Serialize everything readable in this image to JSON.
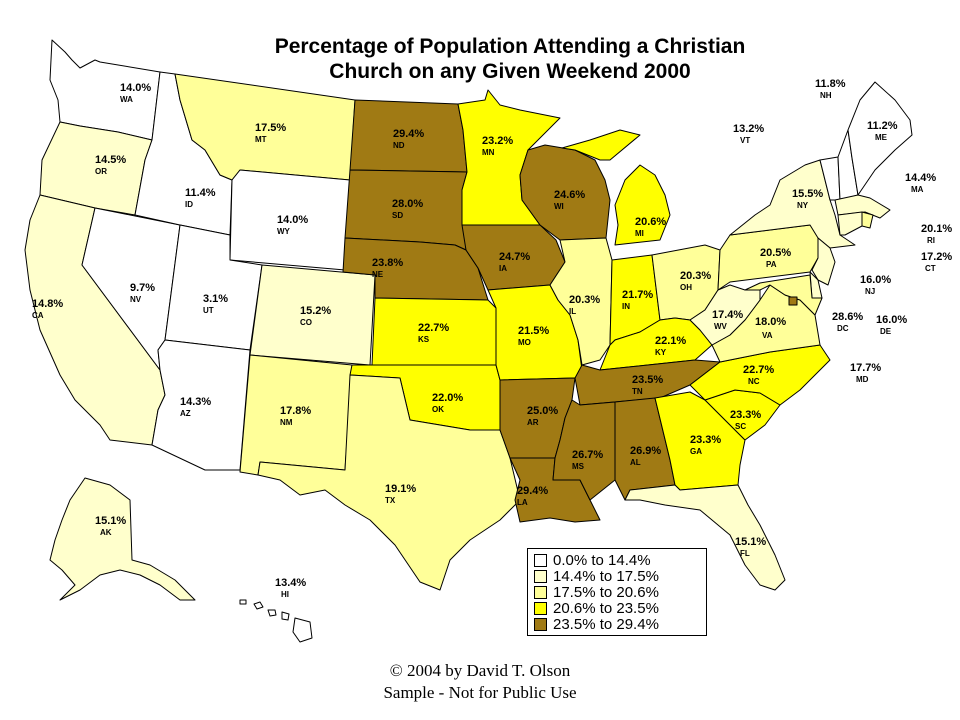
{
  "title_line1": "Percentage of Population Attending a Christian",
  "title_line2": "Church on any Given Weekend 2000",
  "footer_line1": "© 2004 by David T. Olson",
  "footer_line2": "Sample - Not for Public Use",
  "colors": {
    "bin0": "#ffffff",
    "bin1": "#ffffcc",
    "bin2": "#ffff99",
    "bin3": "#ffff00",
    "bin4": "#a07a14"
  },
  "legend": [
    {
      "label": "0.0% to 14.4%",
      "color": "#ffffff"
    },
    {
      "label": "14.4% to 17.5%",
      "color": "#ffffcc"
    },
    {
      "label": "17.5% to 20.6%",
      "color": "#ffff99"
    },
    {
      "label": "20.6% to 23.5%",
      "color": "#ffff00"
    },
    {
      "label": "23.5% to 29.4%",
      "color": "#a07a14"
    }
  ],
  "states": {
    "WA": {
      "pct": "14.0%",
      "abbr": "WA",
      "bin": 0
    },
    "OR": {
      "pct": "14.5%",
      "abbr": "OR",
      "bin": 1
    },
    "CA": {
      "pct": "14.8%",
      "abbr": "CA",
      "bin": 1
    },
    "NV": {
      "pct": "9.7%",
      "abbr": "NV",
      "bin": 0
    },
    "ID": {
      "pct": "11.4%",
      "abbr": "ID",
      "bin": 0
    },
    "MT": {
      "pct": "17.5%",
      "abbr": "MT",
      "bin": 2
    },
    "WY": {
      "pct": "14.0%",
      "abbr": "WY",
      "bin": 0
    },
    "UT": {
      "pct": "3.1%",
      "abbr": "UT",
      "bin": 0
    },
    "AZ": {
      "pct": "14.3%",
      "abbr": "AZ",
      "bin": 0
    },
    "CO": {
      "pct": "15.2%",
      "abbr": "CO",
      "bin": 1
    },
    "NM": {
      "pct": "17.8%",
      "abbr": "NM",
      "bin": 2
    },
    "ND": {
      "pct": "29.4%",
      "abbr": "ND",
      "bin": 4
    },
    "SD": {
      "pct": "28.0%",
      "abbr": "SD",
      "bin": 4
    },
    "NE": {
      "pct": "23.8%",
      "abbr": "NE",
      "bin": 4
    },
    "KS": {
      "pct": "22.7%",
      "abbr": "KS",
      "bin": 3
    },
    "OK": {
      "pct": "22.0%",
      "abbr": "OK",
      "bin": 3
    },
    "TX": {
      "pct": "19.1%",
      "abbr": "TX",
      "bin": 2
    },
    "MN": {
      "pct": "23.2%",
      "abbr": "MN",
      "bin": 3
    },
    "IA": {
      "pct": "24.7%",
      "abbr": "IA",
      "bin": 4
    },
    "MO": {
      "pct": "21.5%",
      "abbr": "MO",
      "bin": 3
    },
    "AR": {
      "pct": "25.0%",
      "abbr": "AR",
      "bin": 4
    },
    "LA": {
      "pct": "29.4%",
      "abbr": "LA",
      "bin": 4
    },
    "WI": {
      "pct": "24.6%",
      "abbr": "WI",
      "bin": 4
    },
    "IL": {
      "pct": "20.3%",
      "abbr": "IL",
      "bin": 2
    },
    "MI": {
      "pct": "20.6%",
      "abbr": "MI",
      "bin": 3
    },
    "IN": {
      "pct": "21.7%",
      "abbr": "IN",
      "bin": 3
    },
    "OH": {
      "pct": "20.3%",
      "abbr": "OH",
      "bin": 2
    },
    "KY": {
      "pct": "22.1%",
      "abbr": "KY",
      "bin": 3
    },
    "TN": {
      "pct": "23.5%",
      "abbr": "TN",
      "bin": 4
    },
    "MS": {
      "pct": "26.7%",
      "abbr": "MS",
      "bin": 4
    },
    "AL": {
      "pct": "26.9%",
      "abbr": "AL",
      "bin": 4
    },
    "GA": {
      "pct": "23.3%",
      "abbr": "GA",
      "bin": 3
    },
    "FL": {
      "pct": "15.1%",
      "abbr": "FL",
      "bin": 1
    },
    "SC": {
      "pct": "23.3%",
      "abbr": "SC",
      "bin": 3
    },
    "NC": {
      "pct": "22.7%",
      "abbr": "NC",
      "bin": 3
    },
    "VA": {
      "pct": "18.0%",
      "abbr": "VA",
      "bin": 2
    },
    "WV": {
      "pct": "17.4%",
      "abbr": "WV",
      "bin": 1
    },
    "PA": {
      "pct": "20.5%",
      "abbr": "PA",
      "bin": 2
    },
    "NY": {
      "pct": "15.5%",
      "abbr": "NY",
      "bin": 1
    },
    "VT": {
      "pct": "13.2%",
      "abbr": "VT",
      "bin": 0
    },
    "NH": {
      "pct": "11.8%",
      "abbr": "NH",
      "bin": 0
    },
    "ME": {
      "pct": "11.2%",
      "abbr": "ME",
      "bin": 0
    },
    "MA": {
      "pct": "14.4%",
      "abbr": "MA",
      "bin": 1
    },
    "RI": {
      "pct": "20.1%",
      "abbr": "RI",
      "bin": 2
    },
    "CT": {
      "pct": "17.2%",
      "abbr": "CT",
      "bin": 1
    },
    "NJ": {
      "pct": "16.0%",
      "abbr": "NJ",
      "bin": 1
    },
    "DE": {
      "pct": "16.0%",
      "abbr": "DE",
      "bin": 1
    },
    "MD": {
      "pct": "17.7%",
      "abbr": "MD",
      "bin": 2
    },
    "DC": {
      "pct": "28.6%",
      "abbr": "DC",
      "bin": 4
    },
    "AK": {
      "pct": "15.1%",
      "abbr": "AK",
      "bin": 1
    },
    "HI": {
      "pct": "13.4%",
      "abbr": "HI",
      "bin": 0
    }
  }
}
